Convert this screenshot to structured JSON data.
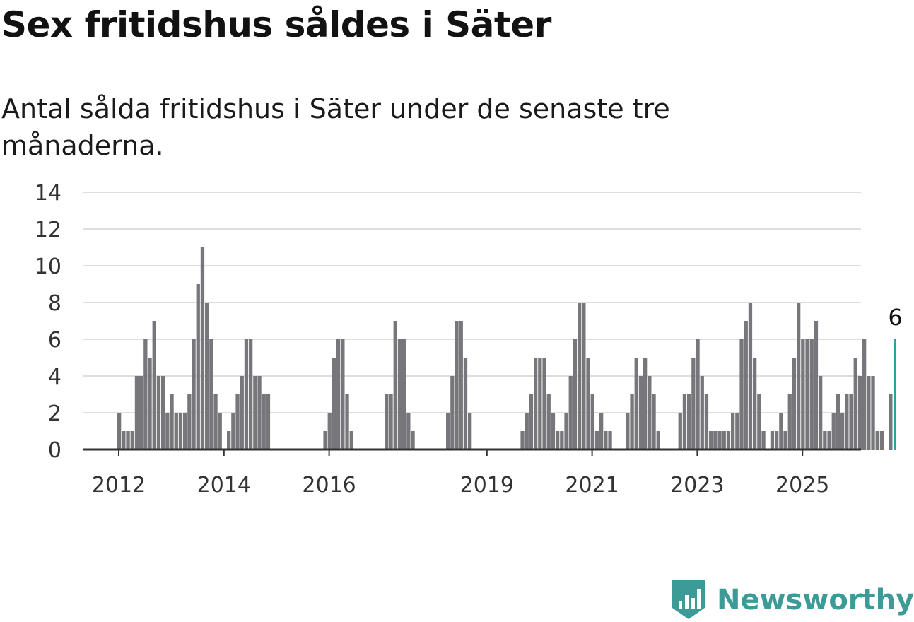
{
  "title": "Sex fritidshus såldes i Säter",
  "subtitle": "Antal sålda fritidshus i Säter under de senaste tre månaderna.",
  "brand": {
    "name": "Newsworthy",
    "color": "#3d9b97"
  },
  "chart_data": {
    "type": "bar",
    "title": "Sex fritidshus såldes i Säter",
    "subtitle": "Antal sålda fritidshus i Säter under de senaste tre månaderna.",
    "xlabel": "",
    "ylabel": "",
    "ylim": [
      0,
      14
    ],
    "yticks": [
      0,
      2,
      4,
      6,
      8,
      10,
      12,
      14
    ],
    "xticks": [
      "2012",
      "2014",
      "2016",
      "2019",
      "2021",
      "2023",
      "2025"
    ],
    "x_start": "2012-01",
    "frequency": "monthly",
    "grid": true,
    "bar_color": "#77767b",
    "highlight_color": "#2aa39f",
    "highlight_label": "6",
    "values": [
      2,
      1,
      1,
      1,
      4,
      4,
      6,
      5,
      7,
      4,
      4,
      2,
      3,
      2,
      2,
      2,
      3,
      6,
      9,
      11,
      8,
      6,
      3,
      2,
      0,
      1,
      2,
      3,
      4,
      6,
      6,
      4,
      4,
      3,
      3,
      0,
      0,
      0,
      0,
      0,
      0,
      0,
      0,
      0,
      0,
      0,
      0,
      1,
      2,
      5,
      6,
      6,
      3,
      1,
      0,
      0,
      0,
      0,
      0,
      0,
      0,
      3,
      3,
      7,
      6,
      6,
      2,
      1,
      0,
      0,
      0,
      0,
      0,
      0,
      0,
      2,
      4,
      7,
      7,
      5,
      2,
      0,
      0,
      0,
      0,
      0,
      0,
      0,
      0,
      0,
      0,
      0,
      1,
      2,
      3,
      5,
      5,
      5,
      3,
      2,
      1,
      1,
      2,
      4,
      6,
      8,
      8,
      5,
      3,
      1,
      2,
      1,
      1,
      0,
      0,
      0,
      2,
      3,
      5,
      4,
      5,
      4,
      3,
      1,
      0,
      0,
      0,
      0,
      2,
      3,
      3,
      5,
      6,
      4,
      3,
      1,
      1,
      1,
      1,
      1,
      2,
      2,
      6,
      7,
      8,
      5,
      3,
      1,
      0,
      1,
      1,
      2,
      1,
      3,
      5,
      8,
      6,
      6,
      6,
      7,
      4,
      1,
      1,
      2,
      3,
      2,
      3,
      3,
      5,
      4,
      6,
      4,
      4,
      1,
      1,
      0,
      3,
      6
    ]
  }
}
